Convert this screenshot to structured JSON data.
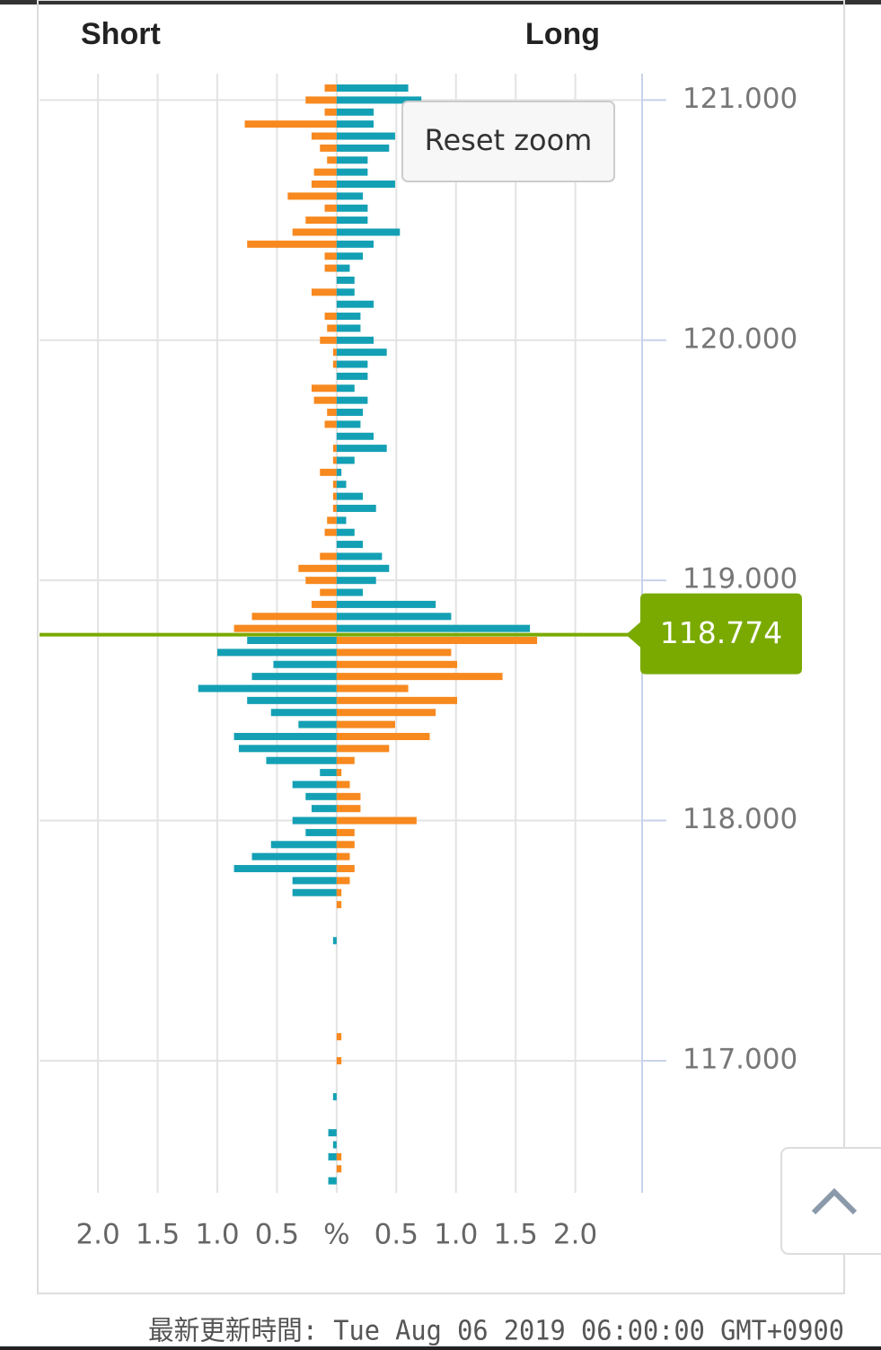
{
  "chart_data": {
    "type": "bar",
    "orientation": "horizontal",
    "y": [
      121.05,
      121.0,
      120.95,
      120.9,
      120.85,
      120.8,
      120.75,
      120.7,
      120.65,
      120.6,
      120.55,
      120.5,
      120.45,
      120.4,
      120.35,
      120.3,
      120.25,
      120.2,
      120.15,
      120.1,
      120.05,
      120.0,
      119.95,
      119.9,
      119.85,
      119.8,
      119.75,
      119.7,
      119.65,
      119.6,
      119.55,
      119.5,
      119.45,
      119.4,
      119.35,
      119.3,
      119.25,
      119.2,
      119.15,
      119.1,
      119.05,
      119.0,
      118.95,
      118.9,
      118.85,
      118.8,
      118.75,
      118.7,
      118.65,
      118.6,
      118.55,
      118.5,
      118.45,
      118.4,
      118.35,
      118.3,
      118.25,
      118.2,
      118.15,
      118.1,
      118.05,
      118.0,
      117.95,
      117.9,
      117.85,
      117.8,
      117.75,
      117.7,
      117.65,
      117.5,
      117.1,
      117.0,
      116.85,
      116.7,
      116.65,
      116.6,
      116.55,
      116.5
    ],
    "series": [
      {
        "name": "Short",
        "colors": {
          "above": "#f7891f",
          "below": "#14a0b4"
        },
        "values": [
          -0.1,
          -0.26,
          -0.1,
          -0.77,
          -0.21,
          -0.14,
          -0.08,
          -0.19,
          -0.21,
          -0.41,
          -0.1,
          -0.26,
          -0.37,
          -0.75,
          -0.1,
          -0.1,
          0,
          -0.21,
          0,
          -0.1,
          -0.08,
          -0.14,
          -0.03,
          -0.03,
          0,
          -0.21,
          -0.19,
          -0.08,
          -0.1,
          0,
          -0.03,
          -0.03,
          -0.14,
          -0.03,
          -0.03,
          -0.03,
          -0.08,
          -0.1,
          0,
          -0.14,
          -0.32,
          -0.26,
          -0.14,
          -0.21,
          -0.71,
          -0.86,
          -0.75,
          -1.0,
          -0.53,
          -0.71,
          -1.16,
          -0.75,
          -0.55,
          -0.32,
          -0.86,
          -0.82,
          -0.59,
          -0.14,
          -0.37,
          -0.26,
          -0.21,
          -0.37,
          -0.26,
          -0.55,
          -0.71,
          -0.86,
          -0.37,
          -0.37,
          0,
          -0.03,
          0,
          0,
          -0.03,
          -0.07,
          -0.03,
          -0.07,
          0,
          -0.07
        ]
      },
      {
        "name": "Long",
        "colors": {
          "above": "#14a0b4",
          "below": "#f7891f"
        },
        "values": [
          0.6,
          0.71,
          0.31,
          0.31,
          0.49,
          0.44,
          0.26,
          0.26,
          0.49,
          0.22,
          0.26,
          0.26,
          0.53,
          0.31,
          0.22,
          0.11,
          0.15,
          0.15,
          0.31,
          0.2,
          0.2,
          0.31,
          0.42,
          0.26,
          0.26,
          0.15,
          0.26,
          0.22,
          0.2,
          0.31,
          0.42,
          0.15,
          0.04,
          0.08,
          0.22,
          0.33,
          0.08,
          0.15,
          0.22,
          0.38,
          0.44,
          0.33,
          0.22,
          0.83,
          0.96,
          1.62,
          1.68,
          0.96,
          1.01,
          1.39,
          0.6,
          1.01,
          0.83,
          0.49,
          0.78,
          0.44,
          0.15,
          0.04,
          0.11,
          0.2,
          0.2,
          0.67,
          0.15,
          0.15,
          0.11,
          0.15,
          0.11,
          0.04,
          0.04,
          0,
          0.04,
          0.04,
          0,
          0,
          0,
          0.04,
          0.04,
          0
        ]
      }
    ],
    "current_price": 118.774,
    "current_price_color": "#7aaa00",
    "xlim": [
      -2.49,
      2.56
    ],
    "xticks": [
      {
        "value": -2,
        "label": "2.0"
      },
      {
        "value": -1.5,
        "label": "1.5"
      },
      {
        "value": -1,
        "label": "1.0"
      },
      {
        "value": -0.5,
        "label": "0.5"
      },
      {
        "value": 0,
        "label": "%"
      },
      {
        "value": 0.5,
        "label": "0.5"
      },
      {
        "value": 1,
        "label": "1.0"
      },
      {
        "value": 1.5,
        "label": "1.5"
      },
      {
        "value": 2,
        "label": "2.0"
      }
    ],
    "ylim": [
      116.45,
      121.11
    ],
    "yticks": [
      {
        "value": 121,
        "label": "121.000"
      },
      {
        "value": 120,
        "label": "120.000"
      },
      {
        "value": 119,
        "label": "119.000"
      },
      {
        "value": 118,
        "label": "118.000"
      },
      {
        "value": 117,
        "label": "117.000"
      }
    ],
    "grid": true
  },
  "ui": {
    "reset_zoom": "Reset zoom",
    "footer": "最新更新時間: Tue Aug 06 2019 06:00:00 GMT+0900"
  }
}
